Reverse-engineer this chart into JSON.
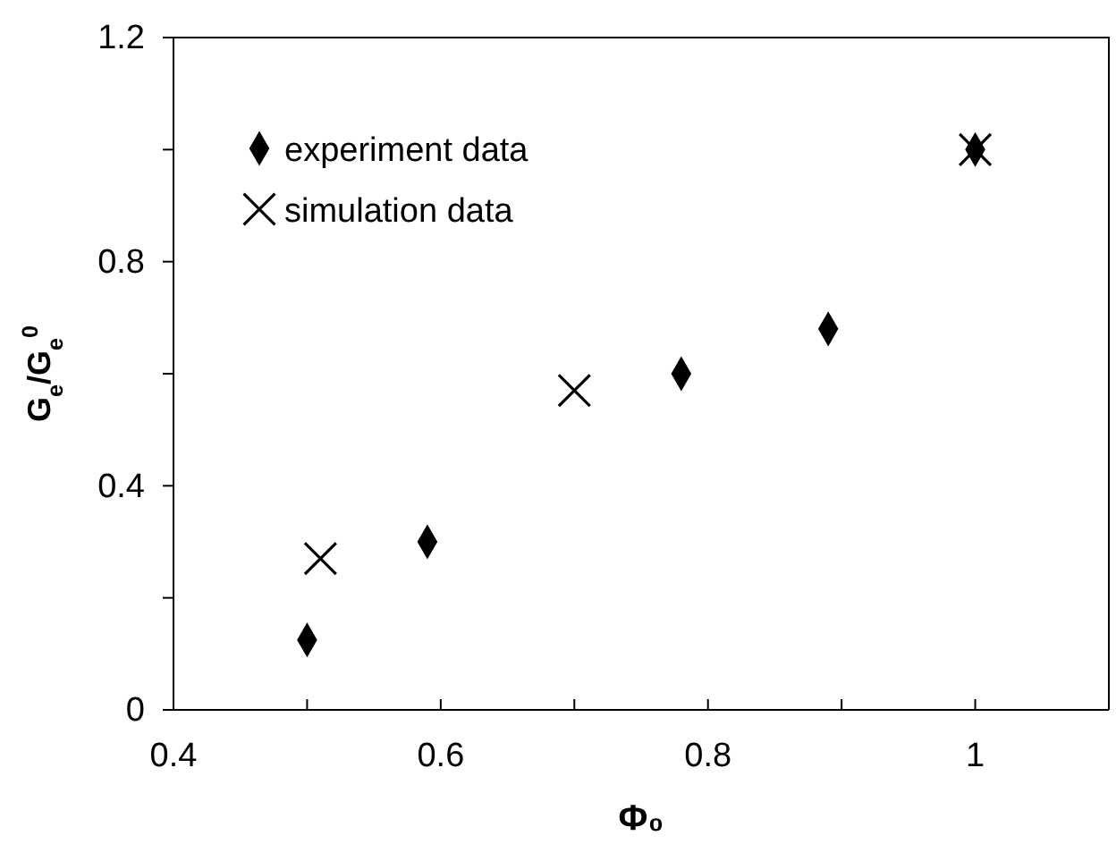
{
  "chart_data": {
    "type": "scatter",
    "xlabel": "Φ₀",
    "ylabel": "G$_{e}$/G$_{e}$$^{0}$",
    "xlim": [
      0.4,
      1.1
    ],
    "ylim": [
      0,
      1.2
    ],
    "xticks": [
      0.4,
      {
        "value": 0.5,
        "label": null
      },
      0.6,
      {
        "value": 0.7,
        "label": null
      },
      0.8,
      {
        "value": 0.9,
        "label": null
      },
      1,
      {
        "value": 1.1,
        "label": null
      }
    ],
    "yticks": [
      0,
      {
        "value": 0.2,
        "label": null
      },
      0.4,
      {
        "value": 0.6,
        "label": null
      },
      0.8,
      {
        "value": 1.0,
        "label": null
      },
      1.2
    ],
    "grid": false,
    "legend": "top left",
    "series": [
      {
        "name": "experiment data",
        "color": "#000000",
        "marker": "diamond",
        "x": [
          0.5,
          0.59,
          0.78,
          0.89,
          1.0
        ],
        "values": [
          0.125,
          0.3,
          0.6,
          0.68,
          1.0
        ]
      },
      {
        "name": "simulation data",
        "color": "#000000",
        "marker": "cross",
        "x": [
          0.51,
          0.7,
          1.0
        ],
        "values": [
          0.27,
          0.57,
          1.0
        ]
      }
    ]
  }
}
